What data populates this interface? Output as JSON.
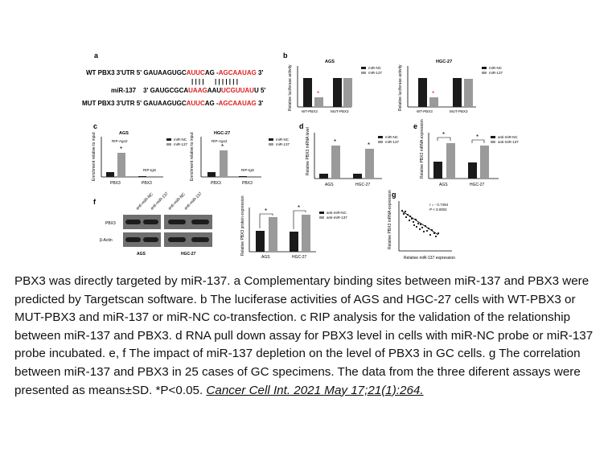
{
  "figure": {
    "panel_a": {
      "label": "a",
      "row1": {
        "prefix": "WT PBX3 3'UTR 5' ",
        "s1": "GAUAAGUGC",
        "s2": "AUUC",
        "s3": "AG -",
        "s4": "AGCAAUAG",
        "s5": " 3'"
      },
      "bars": "| | | |      | | | | | | |",
      "row2": {
        "prefix": "miR-137",
        "mid": "3' GAUGCGCA",
        "s2": "UAAG",
        "s3": "AAU",
        "s4": "UCGUUAU",
        "s5": "U 5'"
      },
      "row3": {
        "prefix": "MUT PBX3 3'UTR 5' ",
        "s1": "GAUAAGUGC",
        "s2": "AUUC",
        "s3": "AG -",
        "s4": "AGCAAUAG",
        "s5": " 3'"
      }
    },
    "panel_b": {
      "label": "b",
      "ylabel": "Relative luciferase activity",
      "legend": [
        "miR-NC",
        "miR-137"
      ],
      "ags_title": "AGS",
      "hgc_title": "HGC-27",
      "categories": [
        "WT-PBX3",
        "MUT-PBX3"
      ],
      "star": "*"
    },
    "panel_c": {
      "label": "c",
      "ylabel": "Enrichment relative to input",
      "legend": [
        "miR-NC",
        "miR-137"
      ],
      "ags_title": "AGS",
      "hgc_title": "HGC-27",
      "categories": [
        "PBX3",
        "PBX3"
      ],
      "ago2": "RIP-Ago2",
      "igg": "RIP-IgG",
      "star": "*"
    },
    "panel_d": {
      "label": "d",
      "ylabel": "Relative PBX3 mRNA level",
      "legend": [
        "miR-NC",
        "miR-137"
      ],
      "categories": [
        "AGS",
        "HGC-27"
      ],
      "star": "*"
    },
    "panel_e": {
      "label": "e",
      "ylabel": "Relative PBX3 mRNA expression",
      "legend": [
        "anti-miR-NC",
        "anti-miR-137"
      ],
      "categories": [
        "AGS",
        "HGC-27"
      ],
      "star": "*"
    },
    "panel_f": {
      "label": "f",
      "lane_labels": [
        "anti-miR-NC",
        "anti-miR-137",
        "anti-miR-NC",
        "anti-miR-137"
      ],
      "row_labels": [
        "PBX3",
        "β-Actin"
      ],
      "group_labels": [
        "AGS",
        "HGC-27"
      ],
      "ylabel": "Relative PBX3 protein expression",
      "legend": [
        "anti-miR-NC",
        "anti-miR-137"
      ],
      "categories": [
        "AGS",
        "HGC-27"
      ],
      "star": "*"
    },
    "panel_g": {
      "label": "g",
      "ylabel": "Relative PBX3 mRNA expression",
      "xlabel": "Relative miR-137 expression",
      "r_text": "r = - 0.7494",
      "p_text": "P < 0.0001"
    }
  },
  "caption": {
    "text": "PBX3 was directly targeted by miR-137. a Complementary binding sites between miR-137 and PBX3 were predicted by Targetscan software. b The luciferase activities of AGS and HGC-27 cells with WT-PBX3 or MUT-PBX3 and miR-137 or miR-NC co-transfection. c RIP analysis for the validation of the relationship between miR-137 and PBX3. d RNA pull down assay for PBX3 level in cells with miR-NC probe or miR-137 probe incubated. e, f The impact of miR-137 depletion on the level of PBX3 in GC cells. g The correlation between miR-137 and PBX3 in 25 cases of GC specimens. The data from the three diferent assays were presented as means±SD. *P<0.05. ",
    "citation": "Cancer Cell Int. 2021 May 17;21(1):264."
  },
  "colors": {
    "dark_bar": "#1a1a1a",
    "light_bar": "#9a9a9a",
    "mismatch_red": "#e02020"
  }
}
